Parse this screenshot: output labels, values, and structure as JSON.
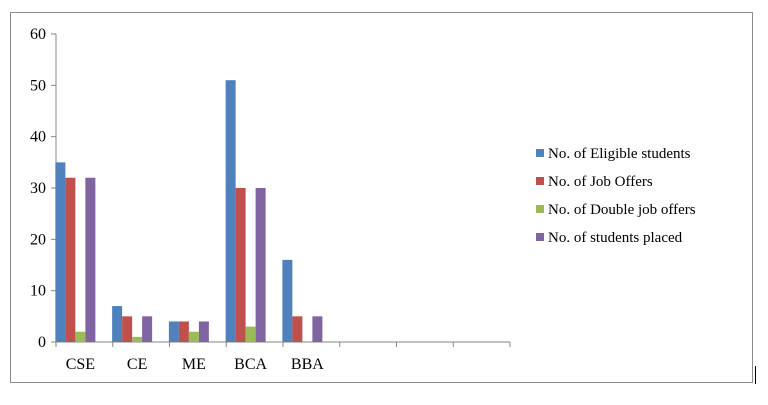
{
  "chart_data": {
    "type": "bar",
    "title": "",
    "xlabel": "",
    "ylabel": "",
    "ylim": [
      0,
      60
    ],
    "yticks": [
      0,
      10,
      20,
      30,
      40,
      50,
      60
    ],
    "grid": false,
    "legend_position": "right",
    "categories": [
      "CSE",
      "CE",
      "ME",
      "BCA",
      "BBA",
      "",
      "",
      ""
    ],
    "series": [
      {
        "name": "No. of Eligible students",
        "color": "#4f81bd",
        "values": [
          35,
          7,
          4,
          51,
          16,
          null,
          null,
          null
        ]
      },
      {
        "name": "No. of Job Offers",
        "color": "#c0504d",
        "values": [
          32,
          5,
          4,
          30,
          5,
          null,
          null,
          null
        ]
      },
      {
        "name": "No. of Double job offers",
        "color": "#9bbb59",
        "values": [
          2,
          1,
          2,
          3,
          0,
          null,
          null,
          null
        ]
      },
      {
        "name": "No. of students placed",
        "color": "#8064a2",
        "values": [
          32,
          5,
          4,
          30,
          5,
          null,
          null,
          null
        ]
      }
    ]
  }
}
